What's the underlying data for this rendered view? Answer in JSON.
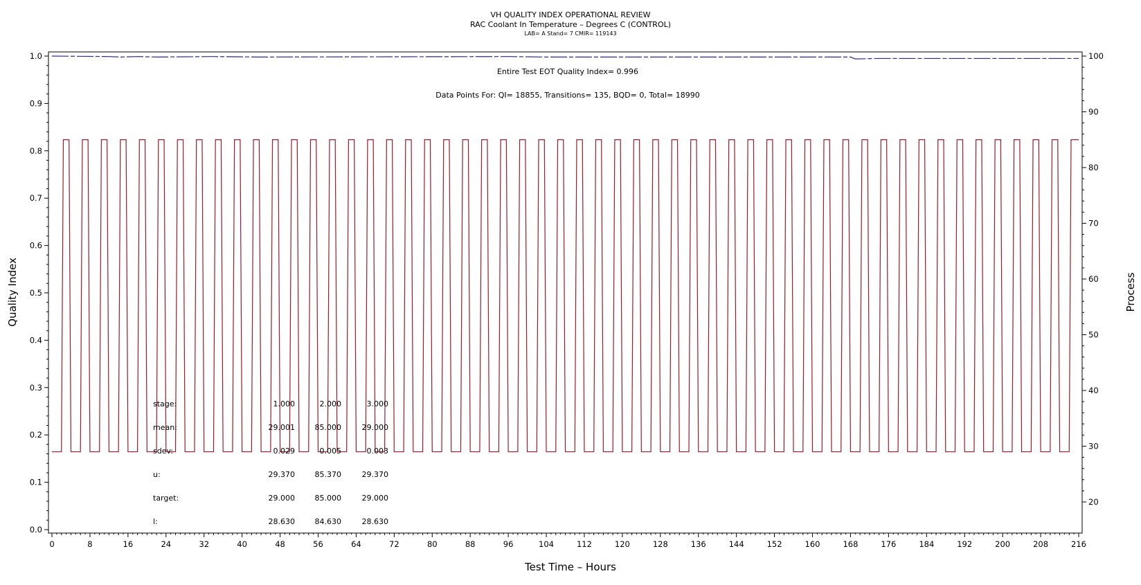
{
  "chart_data": {
    "type": "line",
    "title": "VH QUALITY INDEX OPERATIONAL REVIEW",
    "subtitle": "RAC Coolant In Temperature – Degrees C (CONTROL)",
    "info_line": "LAB= A Stand= 7 CMIR= 119143",
    "xlabel": "Test Time – Hours",
    "ylabel_left": "Quality Index",
    "ylabel_right": "Process",
    "xlim": [
      0,
      216
    ],
    "ylim_left": [
      0.0,
      1.0
    ],
    "ylim_right": [
      20,
      100
    ],
    "x_ticks": [
      "0",
      "8",
      "16",
      "24",
      "32",
      "40",
      "48",
      "56",
      "64",
      "72",
      "80",
      "88",
      "96",
      "104",
      "112",
      "120",
      "128",
      "136",
      "144",
      "152",
      "160",
      "168",
      "176",
      "184",
      "192",
      "200",
      "208",
      "216"
    ],
    "y_left_ticks": [
      "0.0",
      "0.1",
      "0.2",
      "0.3",
      "0.4",
      "0.5",
      "0.6",
      "0.7",
      "0.8",
      "0.9",
      "1.0"
    ],
    "y_right_ticks": [
      "20",
      "30",
      "40",
      "50",
      "60",
      "70",
      "80",
      "90",
      "100"
    ],
    "grid": false,
    "annotations": {
      "eot": "Entire Test EOT Quality Index=   0.996",
      "points": "Data Points For: QI= 18855, Transitions=   135, BQD=     0, Total= 18990"
    },
    "stats_table": {
      "rows": [
        {
          "label": "stage:",
          "values": [
            "1.000",
            "2.000",
            "3.000"
          ]
        },
        {
          "label": "mean:",
          "values": [
            "29.001",
            "85.000",
            "29.000"
          ]
        },
        {
          "label": "sdev:",
          "values": [
            "0.029",
            "0.005",
            "0.003"
          ]
        },
        {
          "label": "u:",
          "values": [
            "29.370",
            "85.370",
            "29.370"
          ]
        },
        {
          "label": "target:",
          "values": [
            "29.000",
            "85.000",
            "29.000"
          ]
        },
        {
          "label": "l:",
          "values": [
            "28.630",
            "84.630",
            "28.630"
          ]
        }
      ]
    },
    "series": [
      {
        "name": "Quality Index",
        "axis": "left",
        "color": "#2a2a8c",
        "points": [
          [
            0,
            1.0
          ],
          [
            12,
            0.999
          ],
          [
            14.5,
            0.998
          ],
          [
            18,
            0.999
          ],
          [
            22,
            0.998
          ],
          [
            34,
            0.999
          ],
          [
            44,
            0.998
          ],
          [
            96,
            0.999
          ],
          [
            104,
            0.998
          ],
          [
            168,
            0.998
          ],
          [
            169,
            0.994
          ],
          [
            174,
            0.995
          ],
          [
            216,
            0.995
          ]
        ]
      },
      {
        "name": "Process",
        "axis": "right",
        "color": "#9b1b2a",
        "cycle": {
          "start_hour": 2,
          "period_hours": 4,
          "ramp_hours": 0.4,
          "high_hours": 1.2,
          "count": 54,
          "low_value": 29,
          "high_value": 85
        }
      }
    ]
  }
}
